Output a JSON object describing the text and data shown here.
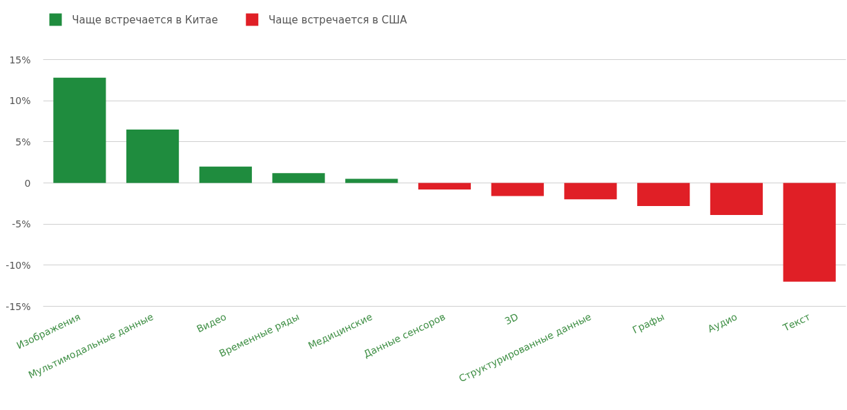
{
  "chart_data": {
    "type": "bar",
    "categories": [
      "Изображения",
      "Мультимодальные данные",
      "Видео",
      "Временные ряды",
      "Медицинские",
      "Данные сенсоров",
      "3D",
      "Структурированные данные",
      "Графы",
      "Аудио",
      "Текст"
    ],
    "series": [
      {
        "name": "Чаще встречается в Китае",
        "color": "#1f8c3e",
        "values": [
          12.8,
          6.5,
          2.0,
          1.2,
          0.5,
          null,
          null,
          null,
          null,
          null,
          null
        ]
      },
      {
        "name": "Чаще встречается в США",
        "color": "#e01f26",
        "values": [
          null,
          null,
          null,
          null,
          null,
          -0.8,
          -1.6,
          -2.0,
          -2.8,
          -3.9,
          -12.0
        ]
      }
    ],
    "stacked": true,
    "ylim": [
      -15,
      15
    ],
    "yticks": [
      {
        "value": 15,
        "label": "15%"
      },
      {
        "value": 10,
        "label": "10%"
      },
      {
        "value": 5,
        "label": "5%"
      },
      0,
      {
        "value": -5,
        "label": "-5%"
      },
      {
        "value": -10,
        "label": "-10%"
      },
      {
        "value": -15,
        "label": "-15%"
      }
    ],
    "grid": "y",
    "legend": "top left"
  }
}
